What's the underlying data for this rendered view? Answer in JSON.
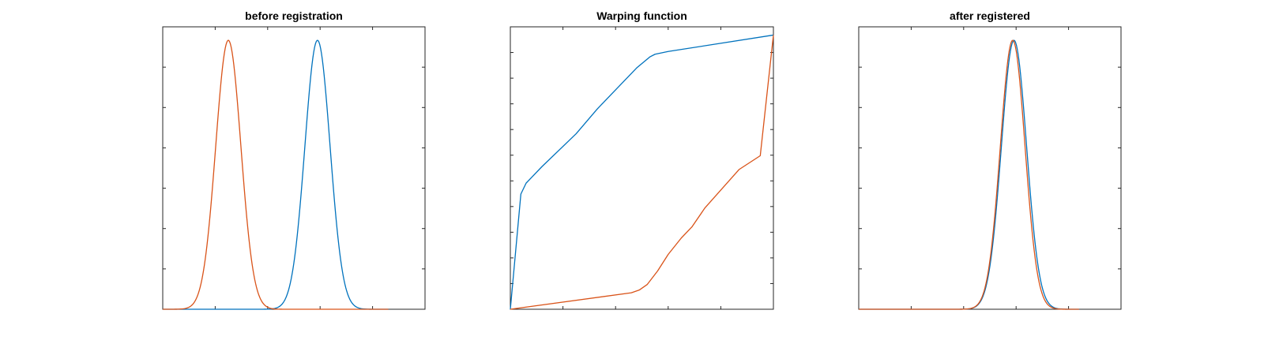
{
  "chart_data": [
    {
      "type": "line",
      "title": "before registration",
      "xlabel": "",
      "ylabel": "",
      "xlim": [
        0,
        1
      ],
      "ylim": [
        0,
        1.05
      ],
      "grid": false,
      "series": [
        {
          "color": "#0072bd",
          "gaussian": {
            "center": 0.59,
            "width": 0.048,
            "peak": 1.0,
            "end": 0.86
          }
        },
        {
          "color": "#d95319",
          "gaussian": {
            "center": 0.25,
            "width": 0.048,
            "peak": 1.0,
            "end": 0.86
          }
        }
      ]
    },
    {
      "type": "line",
      "title": "Warping function",
      "xlabel": "",
      "ylabel": "",
      "xlim": [
        0,
        1
      ],
      "ylim": [
        0,
        1.03
      ],
      "grid": false,
      "series": [
        {
          "color": "#0072bd",
          "x": [
            0,
            0.04,
            0.06,
            0.08,
            0.12,
            0.25,
            0.33,
            0.4,
            0.48,
            0.53,
            0.55,
            0.6,
            1.0
          ],
          "y": [
            0.0,
            0.42,
            0.46,
            0.48,
            0.52,
            0.64,
            0.73,
            0.8,
            0.88,
            0.92,
            0.93,
            0.94,
            1.0
          ]
        },
        {
          "color": "#d95319",
          "x": [
            0,
            0.46,
            0.49,
            0.52,
            0.56,
            0.6,
            0.65,
            0.69,
            0.74,
            0.87,
            0.95,
            1.0
          ],
          "y": [
            0.0,
            0.06,
            0.07,
            0.09,
            0.14,
            0.2,
            0.26,
            0.3,
            0.37,
            0.51,
            0.56,
            1.0
          ]
        }
      ]
    },
    {
      "type": "line",
      "title": "after registered",
      "xlabel": "",
      "ylabel": "",
      "xlim": [
        0,
        1
      ],
      "ylim": [
        0,
        1.05
      ],
      "grid": false,
      "series": [
        {
          "color": "#0072bd",
          "gaussian": {
            "center": 0.592,
            "width": 0.048,
            "peak": 1.0,
            "end": 0.84
          }
        },
        {
          "color": "#d95319",
          "gaussian": {
            "center": 0.587,
            "width": 0.047,
            "peak": 1.0,
            "end": 0.84
          }
        }
      ]
    }
  ]
}
